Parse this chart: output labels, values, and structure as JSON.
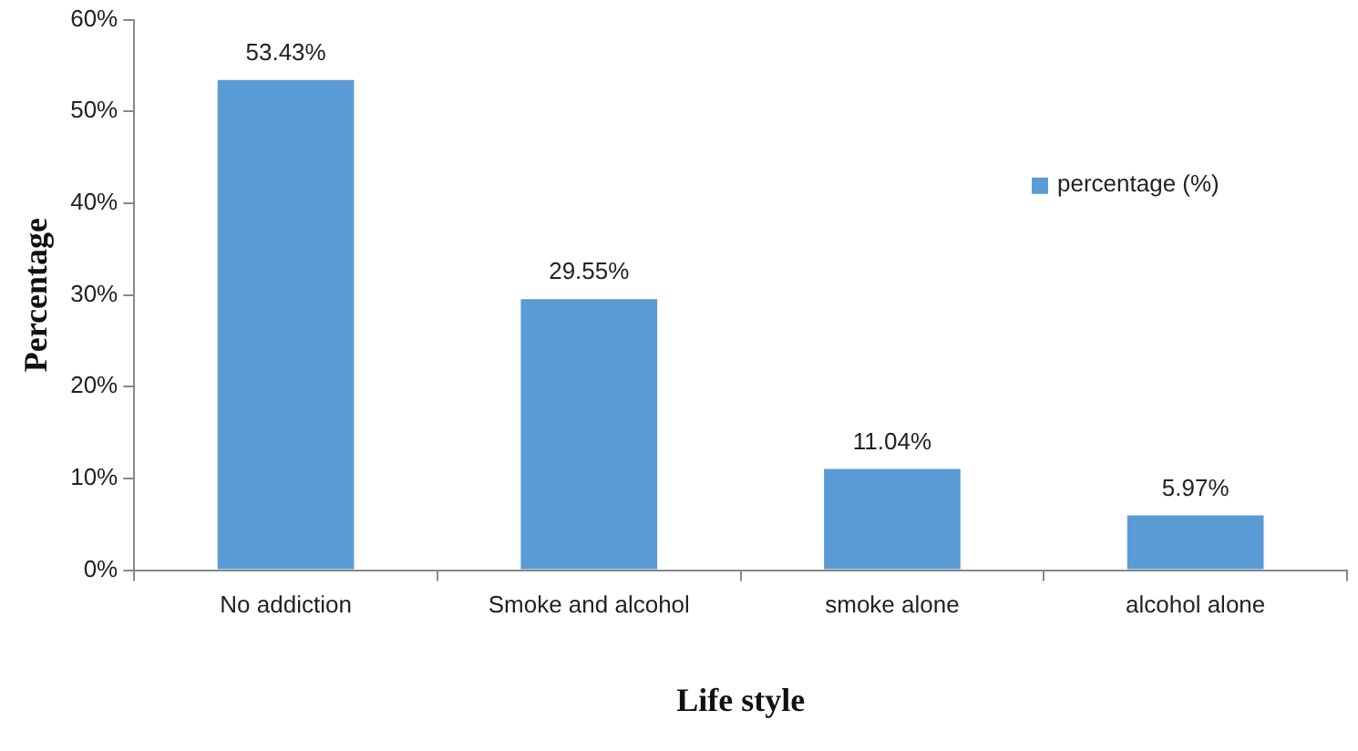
{
  "chart_data": {
    "type": "bar",
    "xlabel": "Life style",
    "ylabel": "Percentage",
    "categories": [
      "No addiction",
      "Smoke and alcohol",
      "smoke alone",
      "alcohol alone"
    ],
    "series": [
      {
        "name": "percentage (%)",
        "color": "#5b9bd5",
        "values": [
          53.43,
          29.55,
          11.04,
          5.97
        ],
        "value_labels": [
          "53.43%",
          "29.55%",
          "11.04%",
          "5.97%"
        ]
      }
    ],
    "ylim": [
      0,
      60
    ],
    "yticks": [
      {
        "value": 0,
        "label": "0%"
      },
      {
        "value": 10,
        "label": "10%"
      },
      {
        "value": 20,
        "label": "20%"
      },
      {
        "value": 30,
        "label": "30%"
      },
      {
        "value": 40,
        "label": "40%"
      },
      {
        "value": 50,
        "label": "50%"
      },
      {
        "value": 60,
        "label": "60%"
      }
    ],
    "grid": false,
    "legend": "right"
  }
}
